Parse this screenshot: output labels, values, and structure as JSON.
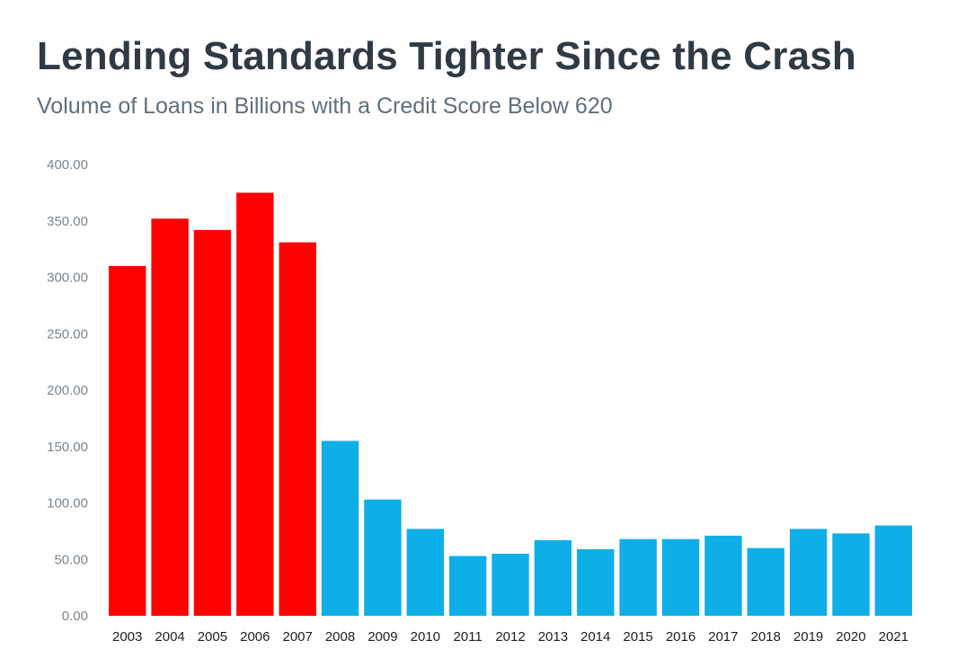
{
  "title": "Lending Standards Tighter Since the Crash",
  "subtitle": "Volume of Loans in Billions with a Credit Score Below 620",
  "chart_data": {
    "type": "bar",
    "title": "Lending Standards Tighter Since the Crash",
    "subtitle": "Volume of Loans in Billions with a Credit Score Below 620",
    "xlabel": "",
    "ylabel": "",
    "ylim": [
      0,
      400
    ],
    "yticks": [
      "0.00",
      "50.00",
      "100.00",
      "150.00",
      "200.00",
      "250.00",
      "300.00",
      "350.00",
      "400.00"
    ],
    "grid": false,
    "legend": "none",
    "categories": [
      "2003",
      "2004",
      "2005",
      "2006",
      "2007",
      "2008",
      "2009",
      "2010",
      "2011",
      "2012",
      "2013",
      "2014",
      "2015",
      "2016",
      "2017",
      "2018",
      "2019",
      "2020",
      "2021"
    ],
    "values": [
      310,
      352,
      342,
      375,
      331,
      155,
      103,
      77,
      53,
      55,
      67,
      59,
      68,
      68,
      71,
      60,
      77,
      73,
      80
    ],
    "colors": [
      "#ff0000",
      "#ff0000",
      "#ff0000",
      "#ff0000",
      "#ff0000",
      "#0eaee9",
      "#0eaee9",
      "#0eaee9",
      "#0eaee9",
      "#0eaee9",
      "#0eaee9",
      "#0eaee9",
      "#0eaee9",
      "#0eaee9",
      "#0eaee9",
      "#0eaee9",
      "#0eaee9",
      "#0eaee9",
      "#0eaee9"
    ]
  }
}
